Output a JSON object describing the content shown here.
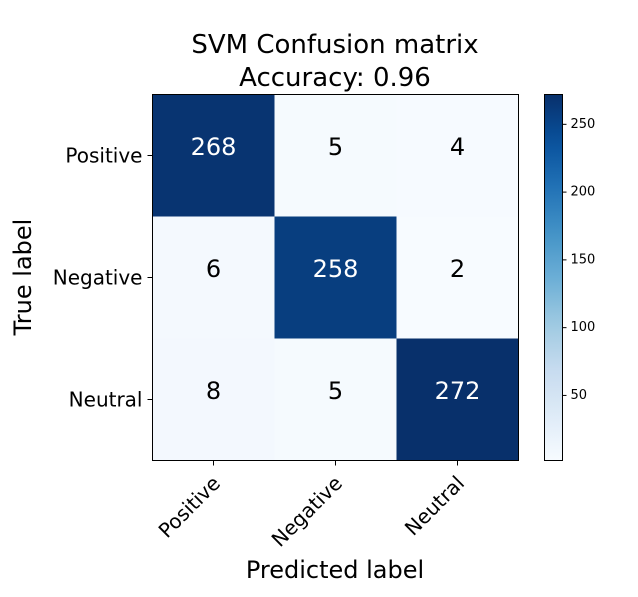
{
  "chart_data": {
    "type": "heatmap",
    "title_lines": [
      "SVM Confusion matrix",
      "Accuracy: 0.96"
    ],
    "xlabel": "Predicted label",
    "ylabel": "True label",
    "x_categories": [
      "Positive",
      "Negative",
      "Neutral"
    ],
    "y_categories": [
      "Positive",
      "Negative",
      "Neutral"
    ],
    "matrix": [
      [
        268,
        5,
        4
      ],
      [
        6,
        258,
        2
      ],
      [
        8,
        5,
        272
      ]
    ],
    "colormap": "Blues",
    "color_range": [
      2,
      272
    ],
    "colorbar_ticks": [
      50,
      100,
      150,
      200,
      250
    ],
    "text_color_dark_cells": "#ffffff",
    "text_color_light_cells": "#000000",
    "grid": false
  }
}
